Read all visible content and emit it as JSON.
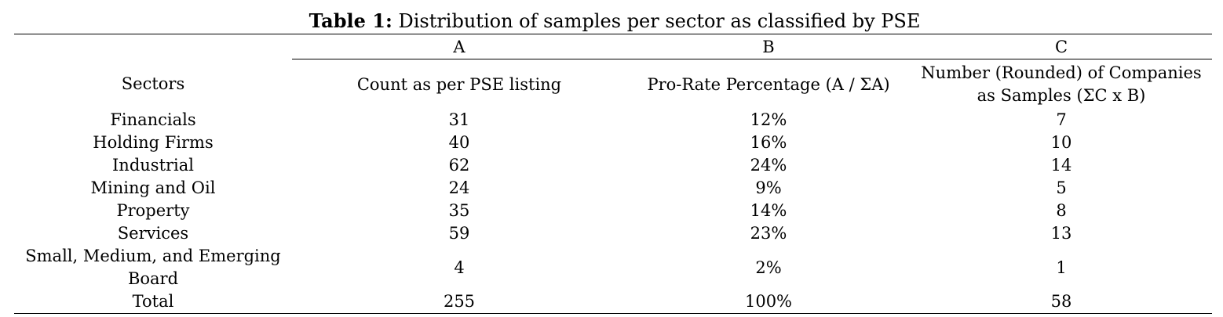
{
  "caption": {
    "label": "Table 1:",
    "text": "Distribution of samples per sector as classified by PSE"
  },
  "table": {
    "column_letters": [
      "",
      "A",
      "B",
      "C"
    ],
    "headers": [
      "Sectors",
      "Count as per PSE listing",
      "Pro-Rate Percentage (A / ΣA)",
      "Number (Rounded) of Companies as Samples (ΣC x B)"
    ],
    "rows": [
      {
        "sector": "Financials",
        "count": "31",
        "percentage": "12%",
        "samples": "7"
      },
      {
        "sector": "Holding Firms",
        "count": "40",
        "percentage": "16%",
        "samples": "10"
      },
      {
        "sector": "Industrial",
        "count": "62",
        "percentage": "24%",
        "samples": "14"
      },
      {
        "sector": "Mining and Oil",
        "count": "24",
        "percentage": "9%",
        "samples": "5"
      },
      {
        "sector": "Property",
        "count": "35",
        "percentage": "14%",
        "samples": "8"
      },
      {
        "sector": "Services",
        "count": "59",
        "percentage": "23%",
        "samples": "13"
      },
      {
        "sector": "Small, Medium, and Emerging Board",
        "count": "4",
        "percentage": "2%",
        "samples": "1"
      }
    ],
    "total": {
      "sector": "Total",
      "count": "255",
      "percentage": "100%",
      "samples": "58"
    }
  }
}
